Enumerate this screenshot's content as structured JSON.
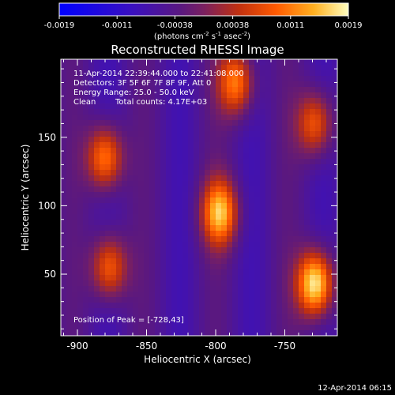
{
  "chart_data": {
    "type": "heatmap",
    "title": "Reconstructed RHESSI Image",
    "xlabel": "Heliocentric X (arcsec)",
    "ylabel": "Heliocentric Y (arcsec)",
    "xlim": [
      -912,
      -712
    ],
    "ylim": [
      5,
      207
    ],
    "x_ticks": [
      -900,
      -850,
      -800,
      -750
    ],
    "x_tick_labels": [
      "-900",
      "-850",
      "-800",
      "-750"
    ],
    "y_ticks": [
      50,
      100,
      150
    ],
    "y_tick_labels": [
      "50",
      "100",
      "150"
    ],
    "colorbar": {
      "tick_labels": [
        "-0.0019",
        "-0.0011",
        "-0.00038",
        "0.00038",
        "0.0011",
        "0.0019"
      ],
      "unit_text": "(photons cm",
      "unit_exp1": "-2",
      "unit_mid": " s",
      "unit_exp2": "-1",
      "unit_end": " asec",
      "unit_exp3": "-2",
      "unit_close": ")",
      "vmin": -0.0019,
      "vmax": 0.0019
    },
    "annotations": {
      "time_range": "11-Apr-2014 22:39:44.000 to 22:41:08.000",
      "detectors": "Detectors: 3F 5F 6F 7F 8F 9F, Att 0",
      "energy": "Energy Range: 25.0 - 50.0 keV",
      "clean": "Clean",
      "counts": "Total counts: 4.17E+03",
      "peak": "Position of Peak = [-728,43]"
    },
    "sources": [
      {
        "x": -728,
        "y": 43,
        "value": 0.0019
      },
      {
        "x": -880,
        "y": 135,
        "value": 0.0012
      },
      {
        "x": -877,
        "y": 55,
        "value": 0.001
      },
      {
        "x": -797,
        "y": 95,
        "value": 0.0014
      },
      {
        "x": -785,
        "y": 190,
        "value": 0.0011
      },
      {
        "x": -728,
        "y": 160,
        "value": 0.0009
      }
    ],
    "footer_date": "12-Apr-2014 06:15"
  }
}
